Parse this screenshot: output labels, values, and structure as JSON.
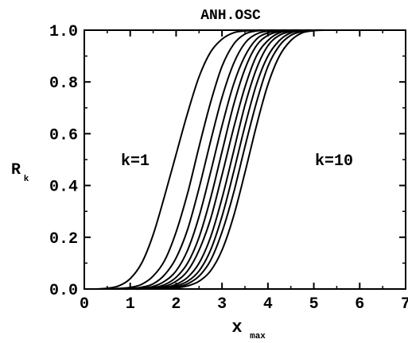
{
  "chart_data": {
    "type": "line",
    "title": "ANH.OSC",
    "xlabel": "x",
    "xlabel_sub": "max",
    "ylabel": "R",
    "ylabel_sub": "k",
    "xlim": [
      0,
      7
    ],
    "ylim": [
      0,
      1
    ],
    "xticks": [
      0,
      1,
      2,
      3,
      4,
      5,
      6,
      7
    ],
    "xtick_labels": [
      "0",
      "1",
      "2",
      "3",
      "4",
      "5",
      "6",
      "7"
    ],
    "yticks": [
      0,
      0.2,
      0.4,
      0.6,
      0.8,
      1.0
    ],
    "ytick_labels": [
      "0.0",
      "0.2",
      "0.4",
      "0.6",
      "0.8",
      "1.0"
    ],
    "grid": false,
    "legend": "none",
    "annotations": [
      {
        "text": "k=1",
        "x": 1.3,
        "y": 0.5
      },
      {
        "text": "k=10",
        "x": 5.35,
        "y": 0.5
      }
    ],
    "x": [
      0.25,
      0.5,
      0.75,
      1.0,
      1.25,
      1.5,
      1.75,
      2.0,
      2.25,
      2.5,
      2.75,
      3.0,
      3.25,
      3.5,
      3.75,
      4.0,
      4.25,
      4.5,
      4.75,
      5.0,
      5.25,
      5.5,
      5.75,
      6.0,
      6.25,
      6.5
    ],
    "series": [
      {
        "values": [
          0.0,
          0.003,
          0.012,
          0.04,
          0.1,
          0.21,
          0.36,
          0.52,
          0.68,
          0.82,
          0.915,
          0.965,
          0.99,
          0.997,
          1.0,
          1.0,
          1.0,
          1.0,
          1.0,
          1.0,
          1.0,
          1.0,
          1.0,
          1.0,
          1.0,
          1.0
        ]
      },
      {
        "values": [
          0.0,
          0.0,
          0.002,
          0.006,
          0.018,
          0.05,
          0.11,
          0.22,
          0.37,
          0.55,
          0.72,
          0.86,
          0.945,
          0.985,
          0.997,
          1.0,
          1.0,
          1.0,
          1.0,
          1.0,
          1.0,
          1.0,
          1.0,
          1.0,
          1.0,
          1.0
        ]
      },
      {
        "values": [
          0.0,
          0.0,
          0.0,
          0.002,
          0.007,
          0.02,
          0.055,
          0.12,
          0.23,
          0.39,
          0.57,
          0.74,
          0.87,
          0.95,
          0.985,
          0.997,
          1.0,
          1.0,
          1.0,
          1.0,
          1.0,
          1.0,
          1.0,
          1.0,
          1.0,
          1.0
        ]
      },
      {
        "values": [
          0.0,
          0.0,
          0.0,
          0.0,
          0.003,
          0.01,
          0.03,
          0.07,
          0.15,
          0.28,
          0.45,
          0.63,
          0.79,
          0.9,
          0.965,
          0.99,
          0.998,
          1.0,
          1.0,
          1.0,
          1.0,
          1.0,
          1.0,
          1.0,
          1.0,
          1.0
        ]
      },
      {
        "values": [
          0.0,
          0.0,
          0.0,
          0.0,
          0.001,
          0.005,
          0.017,
          0.045,
          0.1,
          0.2,
          0.35,
          0.53,
          0.71,
          0.85,
          0.94,
          0.98,
          0.995,
          1.0,
          1.0,
          1.0,
          1.0,
          1.0,
          1.0,
          1.0,
          1.0,
          1.0
        ]
      },
      {
        "values": [
          0.0,
          0.0,
          0.0,
          0.0,
          0.0,
          0.003,
          0.01,
          0.03,
          0.07,
          0.15,
          0.27,
          0.44,
          0.62,
          0.78,
          0.9,
          0.96,
          0.99,
          0.998,
          1.0,
          1.0,
          1.0,
          1.0,
          1.0,
          1.0,
          1.0,
          1.0
        ]
      },
      {
        "values": [
          0.0,
          0.0,
          0.0,
          0.0,
          0.0,
          0.002,
          0.006,
          0.018,
          0.045,
          0.1,
          0.2,
          0.35,
          0.53,
          0.71,
          0.85,
          0.94,
          0.98,
          0.995,
          1.0,
          1.0,
          1.0,
          1.0,
          1.0,
          1.0,
          1.0,
          1.0
        ]
      },
      {
        "values": [
          0.0,
          0.0,
          0.0,
          0.0,
          0.0,
          0.001,
          0.004,
          0.012,
          0.03,
          0.07,
          0.15,
          0.28,
          0.45,
          0.63,
          0.79,
          0.9,
          0.96,
          0.99,
          0.998,
          1.0,
          1.0,
          1.0,
          1.0,
          1.0,
          1.0,
          1.0
        ]
      },
      {
        "values": [
          0.0,
          0.0,
          0.0,
          0.0,
          0.0,
          0.0,
          0.002,
          0.007,
          0.02,
          0.05,
          0.11,
          0.22,
          0.37,
          0.55,
          0.72,
          0.86,
          0.94,
          0.98,
          0.995,
          1.0,
          1.0,
          1.0,
          1.0,
          1.0,
          1.0,
          1.0
        ]
      },
      {
        "values": [
          0.0,
          0.0,
          0.0,
          0.0,
          0.0,
          0.0,
          0.001,
          0.004,
          0.012,
          0.03,
          0.07,
          0.15,
          0.28,
          0.45,
          0.63,
          0.79,
          0.9,
          0.96,
          0.99,
          0.998,
          1.0,
          1.0,
          1.0,
          1.0,
          1.0,
          1.0
        ]
      }
    ]
  }
}
